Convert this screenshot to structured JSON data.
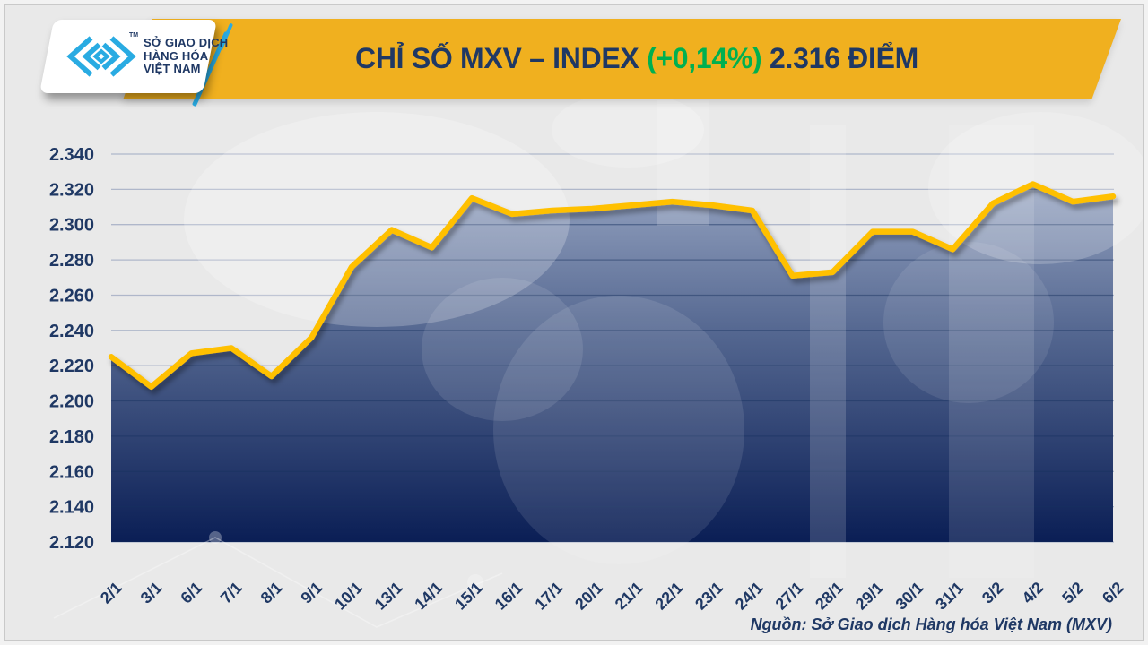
{
  "header": {
    "logo": {
      "line1": "SỞ GIAO DỊCH",
      "line2": "HÀNG HÓA",
      "line3": "VIỆT NAM",
      "trademark": "TM"
    },
    "title": {
      "part1": "CHỈ SỐ MXV – INDEX ",
      "part2": "(+0,14%)",
      "part3": " 2.316 ĐIỂM"
    }
  },
  "footer": {
    "source": "Nguồn: Sở Giao dịch Hàng hóa Việt Nam (MXV)"
  },
  "colors": {
    "background": "#E9E9E9",
    "banner_gold": "#F0B01F",
    "line_yellow": "#FFC000",
    "navy": "#1F3864",
    "green": "#00B050",
    "cyan": "#29ABE2",
    "grid_light": "#AFB7CA",
    "grid_dark": "#17305F",
    "area_top": "#97A5C2",
    "area_mid": "#51648E",
    "area_bottom": "#0A1E55"
  },
  "chart_data": {
    "type": "area",
    "title": "CHỈ SỐ MXV – INDEX (+0,14%) 2.316 ĐIỂM",
    "change_percent": "+0,14%",
    "last_value": 2.316,
    "categories": [
      "2/1",
      "3/1",
      "6/1",
      "7/1",
      "8/1",
      "9/1",
      "10/1",
      "13/1",
      "14/1",
      "15/1",
      "16/1",
      "17/1",
      "20/1",
      "21/1",
      "22/1",
      "23/1",
      "24/1",
      "27/1",
      "28/1",
      "29/1",
      "30/1",
      "31/1",
      "3/2",
      "4/2",
      "5/2",
      "6/2"
    ],
    "values": [
      2.225,
      2.208,
      2.227,
      2.23,
      2.214,
      2.236,
      2.276,
      2.297,
      2.287,
      2.315,
      2.306,
      2.308,
      2.309,
      2.311,
      2.313,
      2.311,
      2.308,
      2.271,
      2.273,
      2.296,
      2.296,
      2.286,
      2.312,
      2.323,
      2.313,
      2.316
    ],
    "xlabel": "",
    "ylabel": "",
    "ylim": [
      2.12,
      2.34
    ],
    "ytick_step": 0.02,
    "ytick_labels": [
      "2.340",
      "2.320",
      "2.300",
      "2.280",
      "2.260",
      "2.240",
      "2.220",
      "2.200",
      "2.180",
      "2.160",
      "2.140",
      "2.120"
    ],
    "grid": true,
    "legend_position": "none"
  }
}
